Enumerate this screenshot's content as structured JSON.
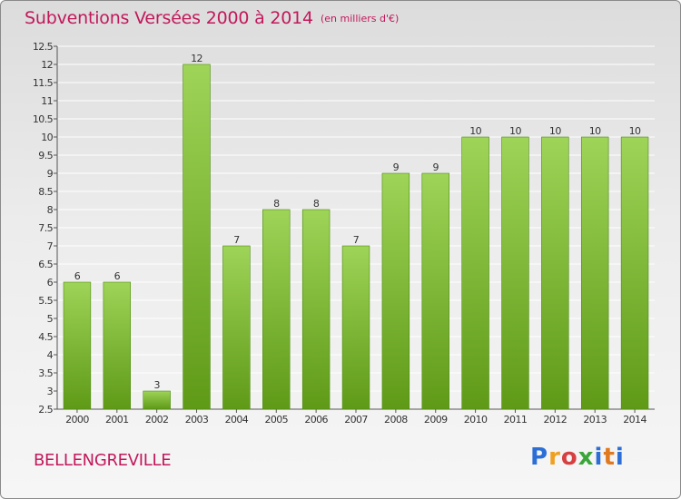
{
  "header": {
    "title": "Subventions Versées 2000 à 2014",
    "unit_note": "(en milliers d'€)"
  },
  "footer": {
    "commune": "BELLENGREVILLE",
    "logo_text": "Proxiti"
  },
  "colors": {
    "title": "#c2185b",
    "bar_top": "#9ed458",
    "bar_bottom": "#5f9a17",
    "grid": "#ffffff"
  },
  "chart_data": {
    "type": "bar",
    "title": "Subventions Versées 2000 à 2014",
    "subtitle": "(en milliers d'€)",
    "xlabel": "",
    "ylabel": "",
    "categories": [
      "2000",
      "2001",
      "2002",
      "2003",
      "2004",
      "2005",
      "2006",
      "2007",
      "2008",
      "2009",
      "2010",
      "2011",
      "2012",
      "2013",
      "2014"
    ],
    "values": [
      6,
      6,
      3,
      12,
      7,
      8,
      8,
      7,
      9,
      9,
      10,
      10,
      10,
      10,
      10
    ],
    "ylim": [
      2.5,
      12.5
    ],
    "yticks": [
      "2.5",
      "3",
      "3.5",
      "4",
      "4.5",
      "5",
      "5.5",
      "6",
      "6.5",
      "7",
      "7.5",
      "8",
      "8.5",
      "9",
      "9.5",
      "10",
      "10.5",
      "11",
      "11.5",
      "12",
      "12.5"
    ],
    "grid": true,
    "data_labels": true
  }
}
